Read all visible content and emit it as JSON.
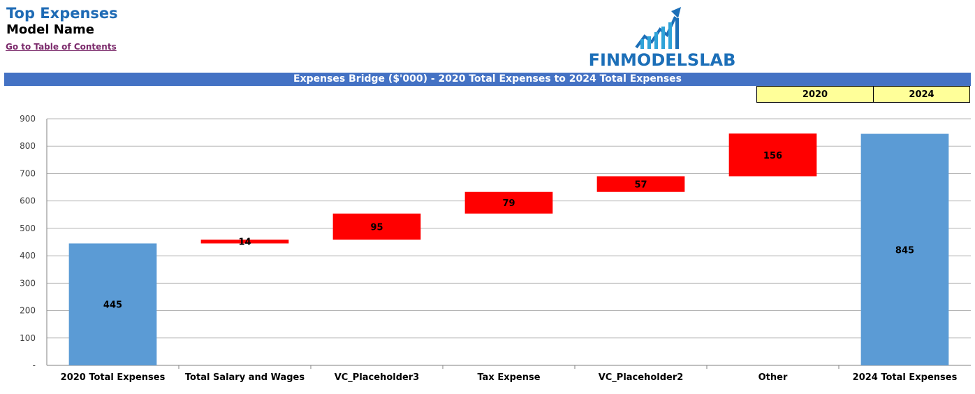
{
  "header": {
    "title": "Top Expenses",
    "model_name": "Model Name",
    "toc_link": "Go to Table of Contents"
  },
  "logo": {
    "text": "FINMODELSLAB",
    "colors": {
      "primary": "#1c6fb8",
      "accent": "#2fa3d8"
    }
  },
  "banner": {
    "text": "Expenses Bridge ($'000) - 2020 Total Expenses to 2024 Total Expenses"
  },
  "year_selectors": {
    "start": "2020",
    "end": "2024"
  },
  "colors": {
    "total": "#5b9bd5",
    "increase": "#ff0000",
    "grid": "#b5b5b5",
    "axis": "#808080"
  },
  "chart_data": {
    "type": "bar",
    "subtype": "waterfall",
    "categories": [
      "2020 Total Expenses",
      "Total Salary and Wages",
      "VC_Placeholder3",
      "Tax Expense",
      "VC_Placeholder2",
      "Other",
      "2024 Total Expenses"
    ],
    "values": [
      445,
      14,
      95,
      79,
      57,
      156,
      845
    ],
    "bar_kind": [
      "total",
      "delta",
      "delta",
      "delta",
      "delta",
      "delta",
      "total"
    ],
    "data_labels": [
      "445",
      "14",
      "95",
      "79",
      "57",
      "156",
      "845"
    ],
    "ylim": [
      0,
      900
    ],
    "yticks": [
      0,
      100,
      200,
      300,
      400,
      500,
      600,
      700,
      800,
      900
    ],
    "ytick_labels": [
      "-",
      "100",
      "200",
      "300",
      "400",
      "500",
      "600",
      "700",
      "800",
      "900"
    ],
    "grid": true,
    "legend": "none"
  }
}
